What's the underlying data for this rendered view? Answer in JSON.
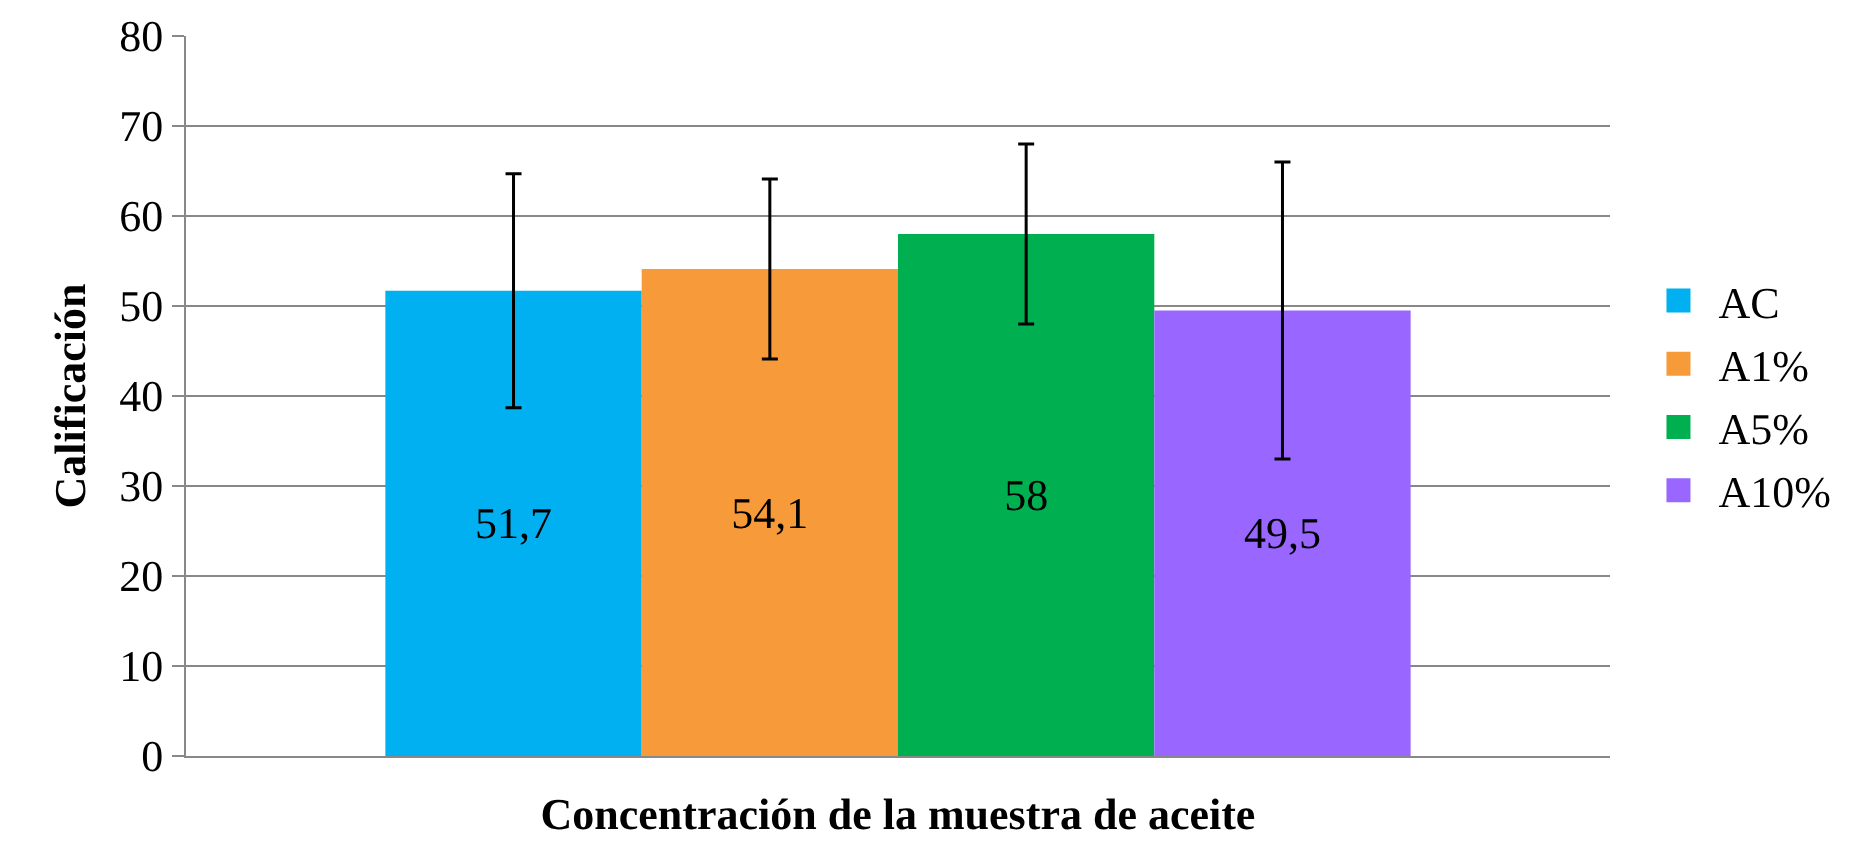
{
  "chart_data": {
    "type": "bar",
    "xlabel": "Concentración de la muestra de aceite",
    "ylabel": "Calificación",
    "categories": [
      null
    ],
    "series": [
      {
        "name": "AC",
        "color": "#00b0f0",
        "values": [
          51.7
        ],
        "errors": [
          13
        ],
        "value_labels": [
          "51,7"
        ]
      },
      {
        "name": "A1%",
        "color": "#f79a3a",
        "values": [
          54.1
        ],
        "errors": [
          10
        ],
        "value_labels": [
          "54,1"
        ]
      },
      {
        "name": "A5%",
        "color": "#00b050",
        "values": [
          58
        ],
        "errors": [
          10
        ],
        "value_labels": [
          "58"
        ]
      },
      {
        "name": "A10%",
        "color": "#9966ff",
        "values": [
          49.5
        ],
        "errors": [
          16.5
        ],
        "value_labels": [
          "49,5"
        ]
      }
    ],
    "ylim": [
      0,
      80
    ],
    "yticks": [
      0,
      10,
      20,
      30,
      40,
      50,
      60,
      70,
      80
    ],
    "grid": "y",
    "legend": "right"
  }
}
